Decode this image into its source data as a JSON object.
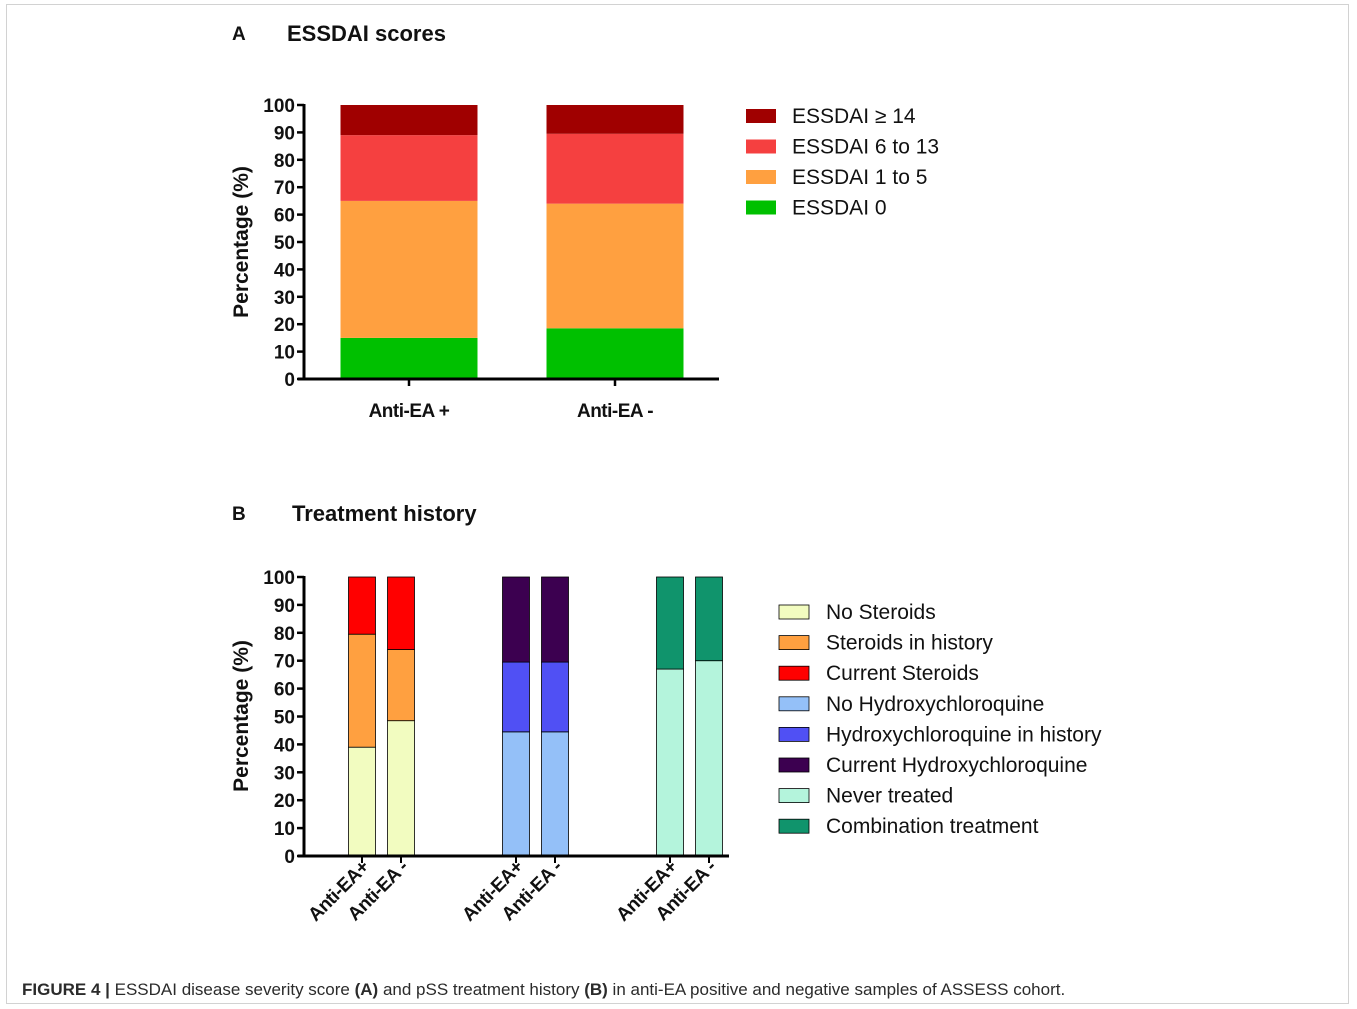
{
  "caption": {
    "label": "FIGURE 4 |",
    "t1": " ESSDAI disease severity score ",
    "a": "(A)",
    "t2": " and pSS treatment history ",
    "b": "(B)",
    "t3": " in anti-EA positive and negative samples of ASSESS cohort."
  },
  "chart_data": [
    {
      "type": "bar",
      "stacked": true,
      "panel": "A",
      "title": "ESSDAI scores",
      "xlabel": "",
      "ylabel": "Percentage (%)",
      "ylim": [
        0,
        100
      ],
      "yticks": [
        0,
        10,
        20,
        30,
        40,
        50,
        60,
        70,
        80,
        90,
        100
      ],
      "categories": [
        "Anti-EA +",
        "Anti-EA -"
      ],
      "legend_position": "right",
      "series": [
        {
          "name": "ESSDAI 0",
          "color": "#00c000",
          "values": [
            15,
            18.5
          ]
        },
        {
          "name": "ESSDAI 1 to 5",
          "color": "#ffa040",
          "values": [
            50,
            45.5
          ]
        },
        {
          "name": "ESSDAI 6 to 13",
          "color": "#f54040",
          "values": [
            24,
            25.5
          ]
        },
        {
          "name": "ESSDAI ≥ 14",
          "color": "#a00000",
          "values": [
            11,
            10.5
          ]
        }
      ]
    },
    {
      "type": "bar",
      "stacked": true,
      "panel": "B",
      "title": "Treatment history",
      "xlabel": "",
      "ylabel": "Percentage (%)",
      "ylim": [
        0,
        100
      ],
      "yticks": [
        0,
        10,
        20,
        30,
        40,
        50,
        60,
        70,
        80,
        90,
        100
      ],
      "categories": [
        "Anti-EA+",
        "Anti-EA -",
        "Anti-EA+",
        "Anti-EA -",
        "Anti-EA+",
        "Anti-EA -"
      ],
      "legend_position": "right",
      "series": [
        {
          "name": "No Steroids",
          "color": "#f2fcc0",
          "values": [
            39,
            48.5,
            0,
            0,
            0,
            0
          ]
        },
        {
          "name": "Steroids in history",
          "color": "#ffa040",
          "values": [
            40.5,
            25.5,
            0,
            0,
            0,
            0
          ]
        },
        {
          "name": "Current Steroids",
          "color": "#ff0000",
          "values": [
            20.5,
            26,
            0,
            0,
            0,
            0
          ]
        },
        {
          "name": "No Hydroxychloroquine",
          "color": "#94c0f8",
          "values": [
            0,
            0,
            44.5,
            44.5,
            0,
            0
          ]
        },
        {
          "name": "Hydroxychloroquine in history",
          "color": "#5050f4",
          "values": [
            0,
            0,
            25,
            25,
            0,
            0
          ]
        },
        {
          "name": "Current Hydroxychloroquine",
          "color": "#3c0050",
          "values": [
            0,
            0,
            30.5,
            30.5,
            0,
            0
          ]
        },
        {
          "name": "Never treated",
          "color": "#b4f4dc",
          "values": [
            0,
            0,
            0,
            0,
            67,
            70
          ]
        },
        {
          "name": "Combination treatment",
          "color": "#10946c",
          "values": [
            0,
            0,
            0,
            0,
            33,
            30
          ]
        }
      ]
    }
  ]
}
